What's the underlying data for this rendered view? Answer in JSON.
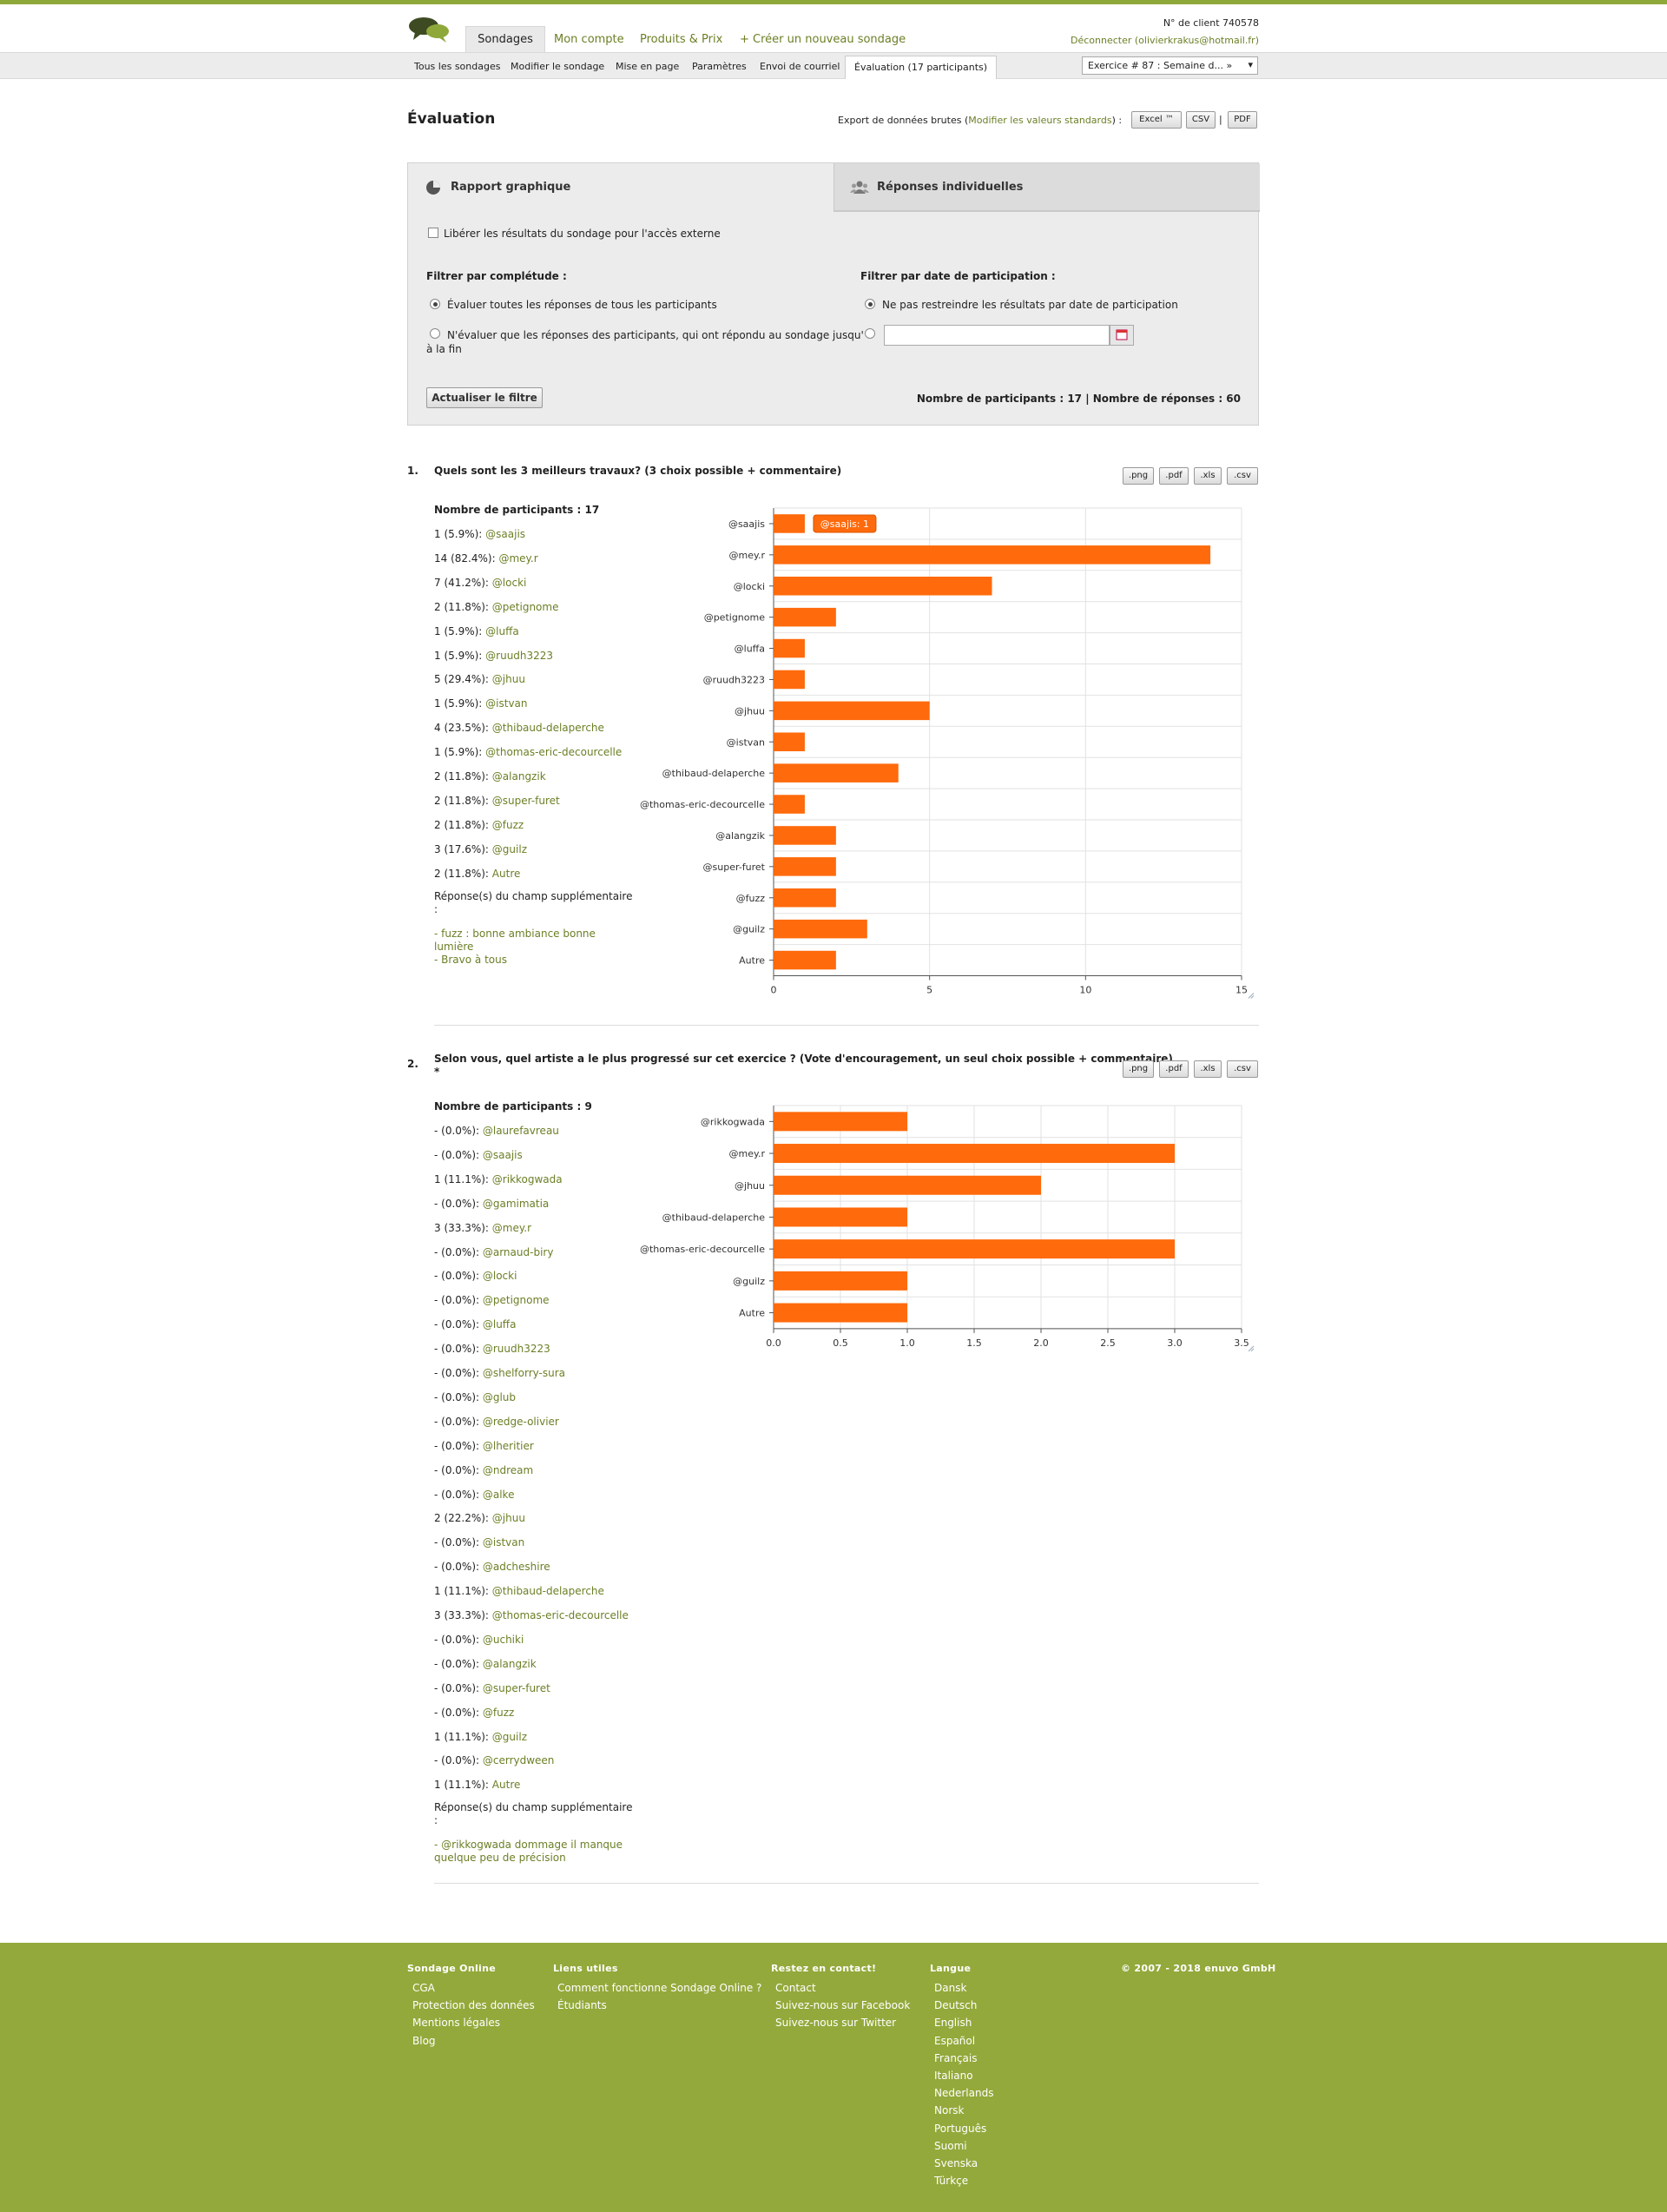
{
  "colors": {
    "accent": "#8fa83a",
    "bar": "#ff6a0c",
    "link": "#6b7f26"
  },
  "header": {
    "logo_icon": "speech-bubbles-logo",
    "tabs": [
      "Sondages",
      "Mon compte",
      "Produits & Prix",
      "+ Créer un nouveau sondage"
    ],
    "client_number": "N° de client 740578",
    "logout": "Déconnecter (olivierkrakus@hotmail.fr)"
  },
  "subnav": {
    "items": [
      "Tous les sondages",
      "Modifier le sondage",
      "Mise en page",
      "Paramètres",
      "Envoi de courriel",
      "Évaluation (17 participants)"
    ],
    "exercise_select": "Exercice # 87 : Semaine d... »"
  },
  "page": {
    "title": "Évaluation",
    "export_label": "Export de données brutes (",
    "export_link": "Modifier les valeurs standards",
    "export_label_end": ") :",
    "export_buttons": [
      "Excel ™",
      "CSV",
      "PDF"
    ],
    "export_sep": "|"
  },
  "panel": {
    "tab_graph": "Rapport graphique",
    "tab_individual": "Réponses individuelles",
    "release_label": "Libérer les résultats du sondage pour l'accès externe",
    "filter_complete_title": "Filtrer par complétude :",
    "filter_complete_opt1": "Évaluer toutes les réponses de tous les participants",
    "filter_complete_opt2a": "N'évaluer que les réponses des participants, qui ont répondu au sondage jusqu'",
    "filter_complete_opt2b": "à la fin",
    "filter_date_title": "Filtrer par date de participation :",
    "filter_date_opt1": "Ne pas restreindre les résultats par date de participation",
    "date_value": "",
    "update_button": "Actualiser le filtre",
    "summary": "Nombre de participants : 17  |  Nombre de réponses : 60"
  },
  "download_buttons": [
    ".png",
    ".pdf",
    ".xls",
    ".csv"
  ],
  "questions": [
    {
      "number": "1.",
      "title": "Quels sont les 3 meilleurs travaux? (3 choix possible + commentaire)",
      "participants": "Nombre de participants : 17",
      "answers": [
        {
          "count": "1 (5.9%): ",
          "name": "@saajis"
        },
        {
          "count": "14 (82.4%): ",
          "name": "@mey.r"
        },
        {
          "count": "7 (41.2%): ",
          "name": "@locki"
        },
        {
          "count": "2 (11.8%): ",
          "name": "@petignome"
        },
        {
          "count": "1 (5.9%): ",
          "name": "@luffa"
        },
        {
          "count": "1 (5.9%): ",
          "name": "@ruudh3223"
        },
        {
          "count": "5 (29.4%): ",
          "name": "@jhuu"
        },
        {
          "count": "1 (5.9%): ",
          "name": "@istvan"
        },
        {
          "count": "4 (23.5%): ",
          "name": "@thibaud-delaperche"
        },
        {
          "count": "1 (5.9%): ",
          "name": "@thomas-eric-decourcelle"
        },
        {
          "count": "2 (11.8%): ",
          "name": "@alangzik"
        },
        {
          "count": "2 (11.8%): ",
          "name": "@super-furet"
        },
        {
          "count": "2 (11.8%): ",
          "name": "@fuzz"
        },
        {
          "count": "3 (17.6%): ",
          "name": "@guilz"
        },
        {
          "count": "2 (11.8%): ",
          "name": "Autre"
        }
      ],
      "extra_title_a": "Réponse(s) du champ supplémentaire",
      "extra_title_b": ":",
      "comments": [
        "- fuzz : bonne ambiance bonne",
        "lumière",
        "- Bravo à tous"
      ],
      "tooltip": "@saajis: 1"
    },
    {
      "number": "2.",
      "title": "Selon vous, quel artiste a le plus progressé sur cet exercice ? (Vote d'encouragement, un seul choix possible + commentaire)",
      "required_mark": "*",
      "participants": "Nombre de participants : 9",
      "answers": [
        {
          "count": "- (0.0%): ",
          "name": "@laurefavreau"
        },
        {
          "count": "- (0.0%): ",
          "name": "@saajis"
        },
        {
          "count": "1 (11.1%): ",
          "name": "@rikkogwada"
        },
        {
          "count": "- (0.0%): ",
          "name": "@gamimatia"
        },
        {
          "count": "3 (33.3%): ",
          "name": "@mey.r"
        },
        {
          "count": "- (0.0%): ",
          "name": "@arnaud-biry"
        },
        {
          "count": "- (0.0%): ",
          "name": "@locki"
        },
        {
          "count": "- (0.0%): ",
          "name": "@petignome"
        },
        {
          "count": "- (0.0%): ",
          "name": "@luffa"
        },
        {
          "count": "- (0.0%): ",
          "name": "@ruudh3223"
        },
        {
          "count": "- (0.0%): ",
          "name": "@shelforry-sura"
        },
        {
          "count": "- (0.0%): ",
          "name": "@glub"
        },
        {
          "count": "- (0.0%): ",
          "name": "@redge-olivier"
        },
        {
          "count": "- (0.0%): ",
          "name": "@lheritier"
        },
        {
          "count": "- (0.0%): ",
          "name": "@ndream"
        },
        {
          "count": "- (0.0%): ",
          "name": "@alke"
        },
        {
          "count": "2 (22.2%): ",
          "name": "@jhuu"
        },
        {
          "count": "- (0.0%): ",
          "name": "@istvan"
        },
        {
          "count": "- (0.0%): ",
          "name": "@adcheshire"
        },
        {
          "count": "1 (11.1%): ",
          "name": "@thibaud-delaperche"
        },
        {
          "count": "3 (33.3%): ",
          "name": "@thomas-eric-decourcelle"
        },
        {
          "count": "- (0.0%): ",
          "name": "@uchiki"
        },
        {
          "count": "- (0.0%): ",
          "name": "@alangzik"
        },
        {
          "count": "- (0.0%): ",
          "name": "@super-furet"
        },
        {
          "count": "- (0.0%): ",
          "name": "@fuzz"
        },
        {
          "count": "1 (11.1%): ",
          "name": "@guilz"
        },
        {
          "count": "- (0.0%): ",
          "name": "@cerrydween"
        },
        {
          "count": "1 (11.1%): ",
          "name": "Autre"
        }
      ],
      "extra_title_a": "Réponse(s) du champ supplémentaire",
      "extra_title_b": ":",
      "comments": [
        "- @rikkogwada dommage il manque",
        "quelque peu de précision"
      ]
    }
  ],
  "chart_data": [
    {
      "type": "bar",
      "orientation": "horizontal",
      "categories": [
        "@saajis",
        "@mey.r",
        "@locki",
        "@petignome",
        "@luffa",
        "@ruudh3223",
        "@jhuu",
        "@istvan",
        "@thibaud-delaperche",
        "@thomas-eric-decourcelle",
        "@alangzik",
        "@super-furet",
        "@fuzz",
        "@guilz",
        "Autre"
      ],
      "values": [
        1,
        14,
        7,
        2,
        1,
        1,
        5,
        1,
        4,
        1,
        2,
        2,
        2,
        3,
        2
      ],
      "xlim": [
        0,
        15
      ],
      "xticks": [
        "0",
        "5",
        "10",
        "15"
      ],
      "grid": true
    },
    {
      "type": "bar",
      "orientation": "horizontal",
      "categories": [
        "@rikkogwada",
        "@mey.r",
        "@jhuu",
        "@thibaud-delaperche",
        "@thomas-eric-decourcelle",
        "@guilz",
        "Autre"
      ],
      "values": [
        1,
        3,
        2,
        1,
        3,
        1,
        1
      ],
      "xlim": [
        0,
        3.5
      ],
      "xticks": [
        "0.0",
        "0.5",
        "1.0",
        "1.5",
        "2.0",
        "2.5",
        "3.0",
        "3.5"
      ],
      "grid": true
    }
  ],
  "footer": {
    "col1_title": "Sondage Online",
    "col1": [
      "CGA",
      "Protection des données",
      "Mentions légales",
      "Blog"
    ],
    "col2_title": "Liens utiles",
    "col2": [
      "Comment fonctionne Sondage Online ?",
      "Étudiants"
    ],
    "col3_title": "Restez en contact!",
    "col3": [
      "Contact",
      "Suivez-nous sur Facebook",
      "Suivez-nous sur Twitter"
    ],
    "col4_title": "Langue",
    "col4": [
      "Dansk",
      "Deutsch",
      "English",
      "Español",
      "Français",
      "Italiano",
      "Nederlands",
      "Norsk",
      "Português",
      "Suomi",
      "Svenska",
      "Türkçe"
    ],
    "copyright": "© 2007 - 2018 enuvo GmbH"
  }
}
